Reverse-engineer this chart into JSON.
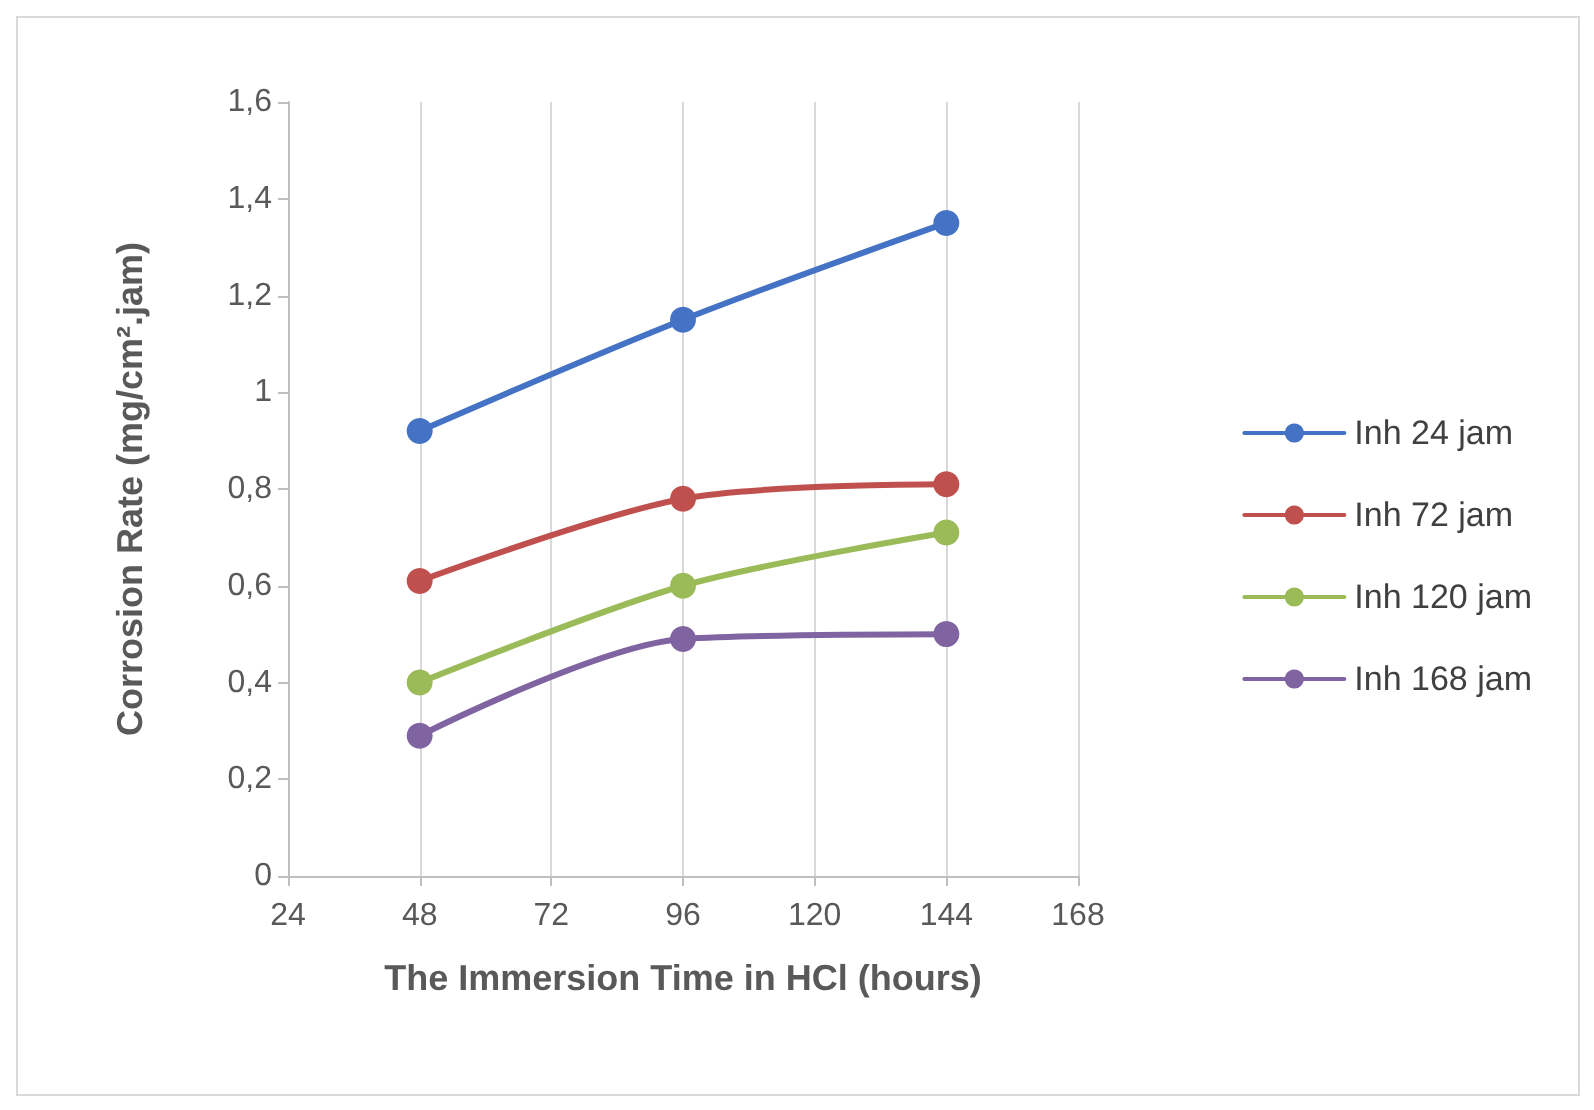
{
  "chart_data": {
    "type": "line",
    "xlabel": "The Immersion Time in HCl (hours)",
    "ylabel": "Corrosion Rate (mg/cm².jam)",
    "x": [
      48,
      96,
      144
    ],
    "series": [
      {
        "name": "Inh 24 jam",
        "color": "#4472c4",
        "values": [
          0.92,
          1.15,
          1.35
        ]
      },
      {
        "name": "Inh 72 jam",
        "color": "#c0504d",
        "values": [
          0.61,
          0.78,
          0.81
        ]
      },
      {
        "name": "Inh 120 jam",
        "color": "#9bbb59",
        "values": [
          0.4,
          0.6,
          0.71
        ]
      },
      {
        "name": "Inh 168 jam",
        "color": "#8064a2",
        "values": [
          0.29,
          0.49,
          0.5
        ]
      }
    ],
    "xlim": [
      24,
      168
    ],
    "xticks": [
      24,
      48,
      72,
      96,
      120,
      144,
      168
    ],
    "ylim": [
      0,
      1.6
    ],
    "yticks": [
      0,
      {
        "value": 0.2,
        "label": "0,2"
      },
      {
        "value": 0.4,
        "label": "0,4"
      },
      {
        "value": 0.6,
        "label": "0,6"
      },
      {
        "value": 0.8,
        "label": "0,8"
      },
      1,
      {
        "value": 1.2,
        "label": "1,2"
      },
      {
        "value": 1.4,
        "label": "1,4"
      },
      {
        "value": 1.6,
        "label": "1,6"
      }
    ],
    "grid": "x",
    "legend": "right",
    "marker": "circle",
    "line_style": "solid"
  }
}
